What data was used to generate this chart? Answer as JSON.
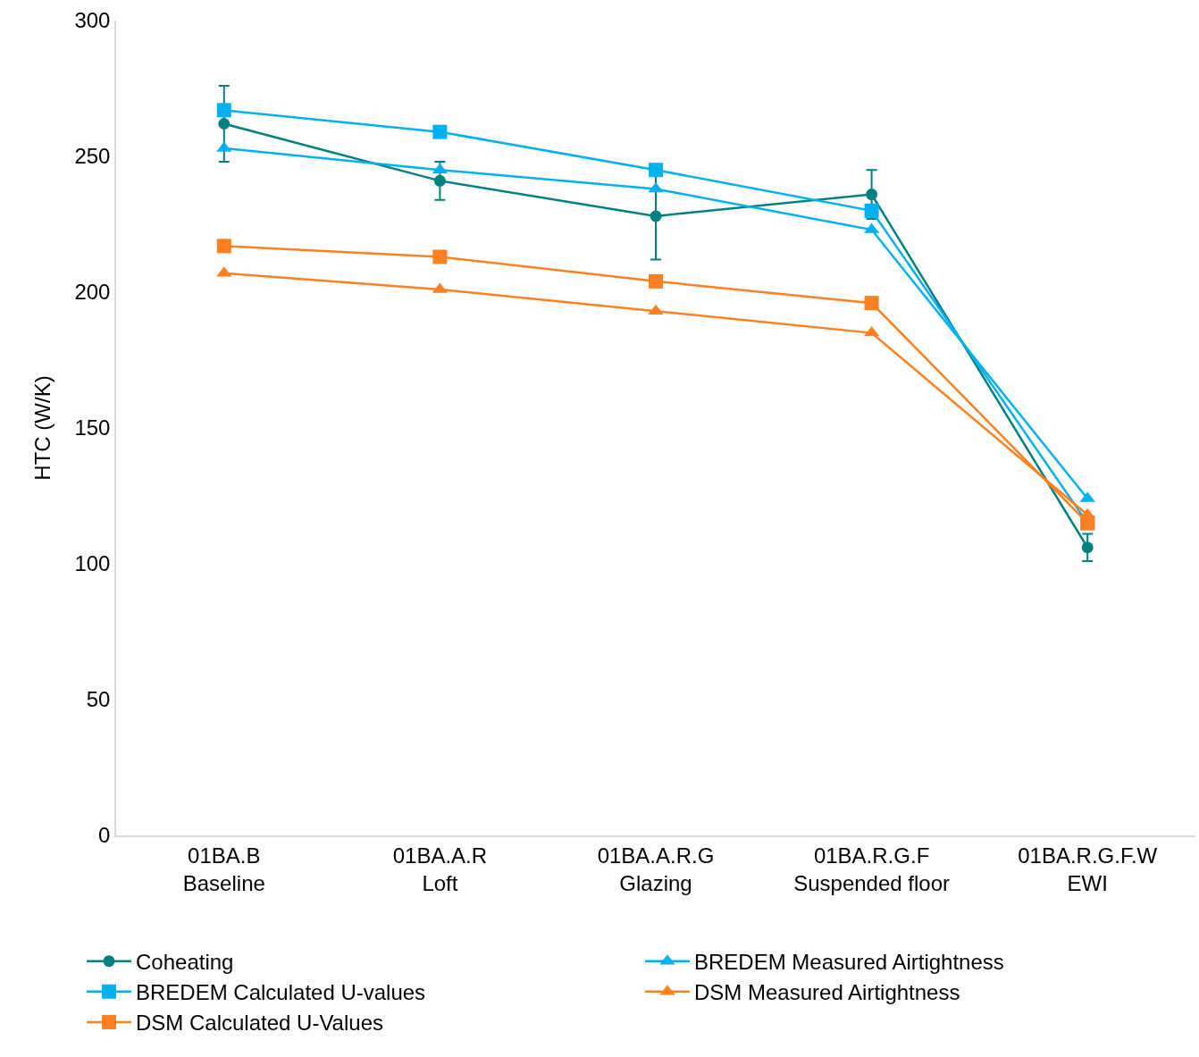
{
  "chart_data": {
    "type": "line",
    "ylabel": "HTC (W/K)",
    "categories": [
      "01BA.B\nBaseline",
      "01BA.A.R\nLoft",
      "01BA.A.R.G\nGlazing",
      "01BA.R.G.F\nSuspended floor",
      "01BA.R.G.F.W\nEWI"
    ],
    "ylim": [
      0,
      300
    ],
    "yticks": [
      0,
      50,
      100,
      150,
      200,
      250,
      300
    ],
    "legend": "bottom",
    "series": [
      {
        "name": "Coheating",
        "color": "#008080",
        "marker": "circle",
        "values": [
          262,
          241,
          228,
          236,
          106
        ],
        "errors": [
          14,
          7,
          16,
          9,
          5
        ]
      },
      {
        "name": "BREDEM Measured Airtightness",
        "color": "#00b0f0",
        "marker": "triangle",
        "values": [
          253,
          245,
          238,
          223,
          124
        ]
      },
      {
        "name": "BREDEM Calculated U-values",
        "color": "#00b0f0",
        "marker": "square",
        "values": [
          267,
          259,
          245,
          230,
          115
        ]
      },
      {
        "name": "DSM Measured Airtightness",
        "color": "#ff8021",
        "marker": "triangle",
        "values": [
          207,
          201,
          193,
          185,
          118
        ]
      },
      {
        "name": "DSM Calculated U-Values",
        "color": "#ff8021",
        "marker": "square",
        "values": [
          217,
          213,
          204,
          196,
          115
        ]
      }
    ]
  }
}
